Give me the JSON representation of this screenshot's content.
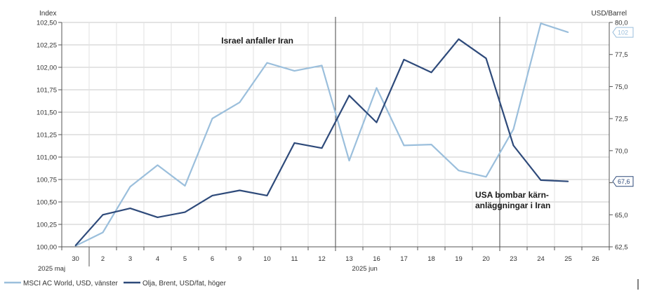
{
  "chart_data": {
    "type": "line",
    "left_axis_title": "Index",
    "right_axis_title": "USD/Barrel",
    "left_ylim": [
      100.0,
      102.5
    ],
    "left_ticks": [
      "100,00",
      "100,25",
      "100,50",
      "100,75",
      "101,00",
      "101,25",
      "101,50",
      "101,75",
      "102,00",
      "102,25",
      "102,50"
    ],
    "right_ylim": [
      62.5,
      80.0
    ],
    "right_ticks": [
      "62,5",
      "65,0",
      "67,5",
      "70,0",
      "72,5",
      "75,0",
      "77,5",
      "80,0"
    ],
    "x_labels": [
      "30",
      "2",
      "3",
      "4",
      "5",
      "6",
      "9",
      "10",
      "11",
      "12",
      "13",
      "16",
      "17",
      "18",
      "19",
      "20",
      "23",
      "24",
      "25",
      "26"
    ],
    "month_labels": [
      {
        "text": "2025 maj",
        "after_index": 0
      },
      {
        "text": "2025 jun",
        "after_index": 9
      }
    ],
    "grid": true,
    "series": [
      {
        "name": "MSCI AC World, USD, vänster",
        "axis": "left",
        "color": "#9bbfdc",
        "values": [
          100.01,
          100.16,
          100.67,
          100.91,
          100.68,
          101.43,
          101.61,
          102.05,
          101.96,
          102.02,
          100.96,
          101.77,
          101.13,
          101.14,
          100.85,
          100.78,
          101.31,
          102.49,
          102.39
        ]
      },
      {
        "name": "Olja, Brent, USD/fat, höger",
        "axis": "right",
        "color": "#2e4a7a",
        "values": [
          62.6,
          65.0,
          65.5,
          64.8,
          65.2,
          66.5,
          66.9,
          66.5,
          70.6,
          70.2,
          74.3,
          72.2,
          77.1,
          76.1,
          78.7,
          77.2,
          70.4,
          67.7,
          67.6
        ]
      }
    ],
    "annotations": [
      {
        "text": "Israel anfaller Iran",
        "at_index": 9.5
      },
      {
        "text": "USA bombar kärn-",
        "at_index": 15.5
      },
      {
        "text": "anläggningar i Iran",
        "at_index": 15.5
      }
    ],
    "end_labels": [
      {
        "text": "102",
        "series": 0
      },
      {
        "text": "67,6",
        "series": 1
      }
    ]
  }
}
